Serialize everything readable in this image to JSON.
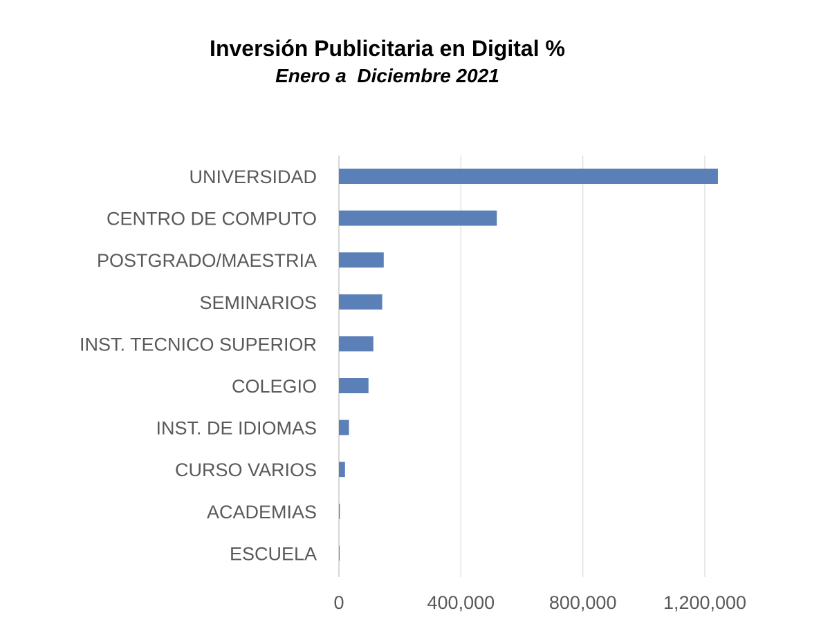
{
  "chart_data": {
    "type": "bar",
    "orientation": "horizontal",
    "title": "Inversión Publicitaria en Digital %",
    "subtitle": "Enero a  Diciembre 2021",
    "categories": [
      "UNIVERSIDAD",
      "CENTRO DE COMPUTO",
      "POSTGRADO/MAESTRIA",
      "SEMINARIOS",
      "INST. TECNICO SUPERIOR",
      "COLEGIO",
      "INST. DE IDIOMAS",
      "CURSO VARIOS",
      "ACADEMIAS",
      "ESCUELA"
    ],
    "values": [
      1243000,
      518000,
      147000,
      142000,
      113000,
      97000,
      33000,
      20000,
      3000,
      1500
    ],
    "xlim": [
      0,
      1300000
    ],
    "ticks": [
      0,
      400000,
      800000,
      1200000
    ],
    "tick_labels": [
      "0",
      "400,000",
      "800,000",
      "1,200,000"
    ],
    "xlabel": "",
    "ylabel": "",
    "grid": "vertical",
    "legend": "none",
    "bar_color": "#5b80b8"
  }
}
